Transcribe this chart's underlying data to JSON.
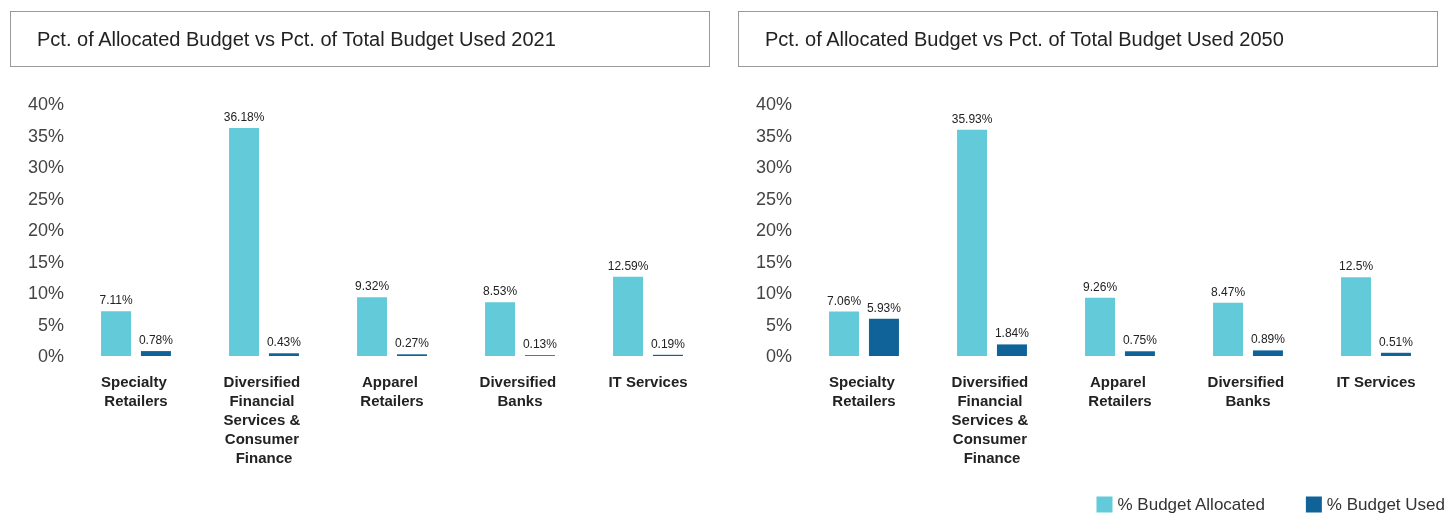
{
  "chart_data": [
    {
      "type": "bar",
      "title": "Pct. of Allocated Budget vs Pct. of Total Budget Used 2021",
      "categories": [
        "Specialty Retailers",
        "Diversified Financial Services & Consumer Finance",
        "Apparel Retailers",
        "Diversified Banks",
        "IT Services"
      ],
      "series": [
        {
          "color": "#62cad8",
          "values": [
            7.11,
            36.18,
            9.32,
            8.53,
            12.59
          ],
          "value_labels": [
            "7.11%",
            "36.18%",
            "9.32%",
            "8.53%",
            "12.59%"
          ]
        },
        {
          "color": "#0f6399",
          "values": [
            0.78,
            0.43,
            0.27,
            0.13,
            0.19
          ],
          "value_labels": [
            "0.78%",
            "0.43%",
            "0.27%",
            "0.13%",
            "0.19%"
          ]
        }
      ],
      "ylim": [
        0,
        40
      ],
      "yticks": [
        {
          "value": 0,
          "label": "0%"
        },
        {
          "value": 5,
          "label": "5%"
        },
        {
          "value": 10,
          "label": "10%"
        },
        {
          "value": 15,
          "label": "15%"
        },
        {
          "value": 20,
          "label": "20%"
        },
        {
          "value": 25,
          "label": "25%"
        },
        {
          "value": 30,
          "label": "30%"
        },
        {
          "value": 35,
          "label": "35%"
        },
        {
          "value": 40,
          "label": "40%"
        }
      ],
      "grid": false,
      "legend": false
    },
    {
      "type": "bar",
      "title": "Pct. of Allocated Budget vs Pct. of Total Budget Used 2050",
      "categories": [
        "Specialty Retailers",
        "Diversified Financial Services & Consumer Finance",
        "Apparel Retailers",
        "Diversified Banks",
        "IT Services"
      ],
      "series": [
        {
          "name": "% Budget Allocated",
          "color": "#62cad8",
          "values": [
            7.06,
            35.93,
            9.26,
            8.47,
            12.5
          ],
          "value_labels": [
            "7.06%",
            "35.93%",
            "9.26%",
            "8.47%",
            "12.5%"
          ]
        },
        {
          "name": "% Budget Used",
          "color": "#0f6399",
          "values": [
            5.93,
            1.84,
            0.75,
            0.89,
            0.51
          ],
          "value_labels": [
            "5.93%",
            "1.84%",
            "0.75%",
            "0.89%",
            "0.51%"
          ]
        }
      ],
      "ylim": [
        0,
        40
      ],
      "yticks": [
        {
          "value": 0,
          "label": "0%"
        },
        {
          "value": 5,
          "label": "5%"
        },
        {
          "value": 10,
          "label": "10%"
        },
        {
          "value": 15,
          "label": "15%"
        },
        {
          "value": 20,
          "label": "20%"
        },
        {
          "value": 25,
          "label": "25%"
        },
        {
          "value": 30,
          "label": "30%"
        },
        {
          "value": 35,
          "label": "35%"
        },
        {
          "value": 40,
          "label": "40%"
        }
      ],
      "grid": false,
      "legend": "bottom right"
    }
  ]
}
